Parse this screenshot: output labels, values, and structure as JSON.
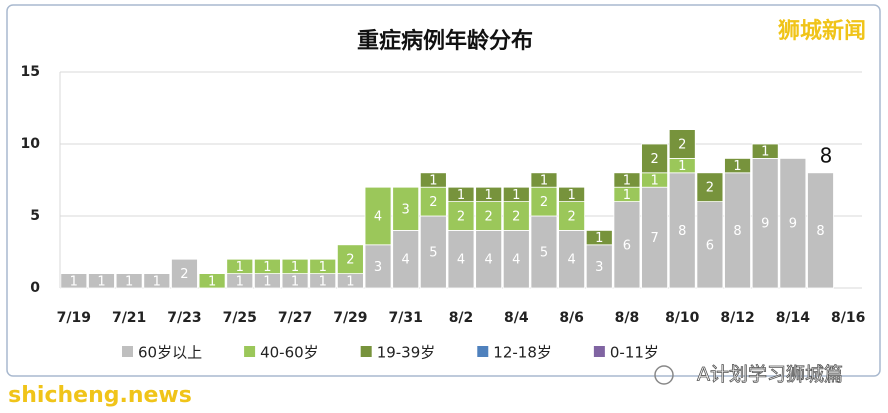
{
  "chart_data": {
    "type": "stacked-bar",
    "title": "重症病例年龄分布",
    "categories": [
      "7/19",
      null,
      "7/21",
      null,
      "7/23",
      null,
      "7/25",
      null,
      "7/27",
      null,
      "7/29",
      null,
      "7/31",
      null,
      "8/2",
      null,
      "8/4",
      null,
      "8/6",
      null,
      "8/8",
      null,
      "8/10",
      null,
      "8/12",
      null,
      "8/14",
      null,
      "8/16"
    ],
    "series": [
      {
        "name": "60岁以上",
        "color": "#bfbfbf",
        "values": [
          1,
          1,
          1,
          1,
          2,
          0,
          1,
          1,
          1,
          1,
          1,
          3,
          4,
          5,
          4,
          4,
          4,
          5,
          4,
          3,
          6,
          7,
          8,
          6,
          8,
          9,
          9,
          8,
          null
        ]
      },
      {
        "name": "40-60岁",
        "color": "#9bc75a",
        "values": [
          0,
          0,
          0,
          0,
          0,
          1,
          1,
          1,
          1,
          1,
          2,
          4,
          3,
          2,
          2,
          2,
          2,
          2,
          2,
          0,
          1,
          1,
          1,
          0,
          0,
          0,
          0,
          0,
          null
        ]
      },
      {
        "name": "19-39岁",
        "color": "#77933c",
        "values": [
          0,
          0,
          0,
          0,
          0,
          0,
          0,
          0,
          0,
          0,
          0,
          0,
          0,
          1,
          1,
          1,
          1,
          1,
          1,
          1,
          1,
          2,
          2,
          2,
          1,
          1,
          0,
          0,
          null
        ]
      },
      {
        "name": "12-18岁",
        "color": "#4f81bd",
        "values": [
          0,
          0,
          0,
          0,
          0,
          0,
          0,
          0,
          0,
          0,
          0,
          0,
          0,
          0,
          0,
          0,
          0,
          0,
          0,
          0,
          0,
          0,
          0,
          0,
          0,
          0,
          0,
          0,
          null
        ]
      },
      {
        "name": "0-11岁",
        "color": "#8064a2",
        "values": [
          0,
          0,
          0,
          0,
          0,
          0,
          0,
          0,
          0,
          0,
          0,
          0,
          0,
          0,
          0,
          0,
          0,
          0,
          0,
          0,
          0,
          0,
          0,
          0,
          0,
          0,
          0,
          0,
          null
        ]
      }
    ],
    "annotations": [
      {
        "label": "8"
      }
    ],
    "ylim": [
      0,
      15
    ],
    "yticks": [
      0,
      5,
      10,
      15
    ],
    "grid": true,
    "legend": "bottom"
  },
  "watermarks": {
    "top_right": "狮城新闻",
    "bottom_left": "shicheng.news",
    "bottom_right": "A计划学习狮城篇"
  }
}
